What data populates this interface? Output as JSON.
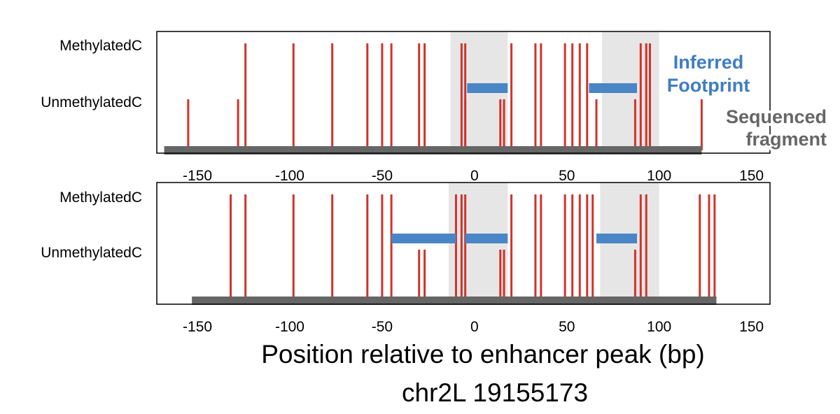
{
  "chart_data": {
    "type": "methylation-footprint",
    "xlabel": "Position relative to enhancer peak (bp)",
    "subtitle": "chr2L 19155173",
    "xlim": [
      -172,
      160
    ],
    "xticks": [
      -150,
      -100,
      -50,
      0,
      50,
      100,
      150
    ],
    "ytick_labels": [
      "MethylatedC",
      "UnmethylatedC"
    ],
    "annotations": {
      "footprint_label_line1": "Inferred",
      "footprint_label_line2": "Footprint",
      "fragment_label_line1": "Sequenced",
      "fragment_label_line2": "fragment"
    },
    "colors": {
      "methylation_ticks": "#D0332B",
      "footprint_bars": "#4A86C5",
      "fragment_bar": "#666666",
      "shaded_regions": "#E6E6E6"
    },
    "panels": [
      {
        "shaded_regions": [
          [
            -13,
            18
          ],
          [
            69,
            100
          ]
        ],
        "sequenced_fragment": [
          -168,
          123
        ],
        "inferred_footprints": [
          [
            -4,
            18
          ],
          [
            62,
            88
          ]
        ],
        "methylated_c": [
          -124,
          -98,
          -77,
          -58,
          -50,
          -45,
          -30,
          -27,
          -7,
          -5,
          20,
          33,
          36,
          49,
          53,
          57,
          61,
          90,
          93,
          95
        ],
        "unmethylated_c": [
          -155,
          -128,
          -5,
          14,
          16,
          66,
          87,
          123
        ]
      },
      {
        "shaded_regions": [
          [
            -14,
            18
          ],
          [
            68,
            100
          ]
        ],
        "sequenced_fragment": [
          -153,
          131
        ],
        "inferred_footprints": [
          [
            -45,
            -10
          ],
          [
            -5,
            18
          ],
          [
            66,
            88
          ]
        ],
        "methylated_c": [
          -132,
          -124,
          -98,
          -77,
          -58,
          -50,
          -45,
          -10,
          -7,
          -5,
          20,
          33,
          36,
          49,
          53,
          57,
          61,
          64,
          90,
          93,
          122,
          127,
          130
        ],
        "unmethylated_c": [
          -30,
          -27,
          14,
          16,
          87
        ]
      }
    ]
  }
}
